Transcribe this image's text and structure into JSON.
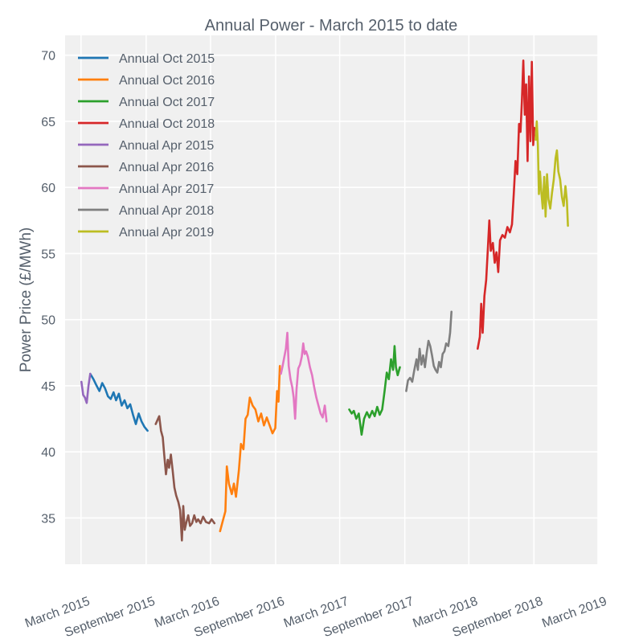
{
  "chart_data": {
    "type": "line",
    "title": "Annual Power - March 2015 to date",
    "xlabel": "",
    "ylabel": "Power Price (£/MWh)",
    "ylim": [
      31.5,
      71.5
    ],
    "xlim": [
      "2015-01-15",
      "2019-03-01"
    ],
    "grid": true,
    "legend_position": "top-left",
    "x_ticks": [
      {
        "label": "March 2015",
        "date": "2015-03-01"
      },
      {
        "label": "September 2015",
        "date": "2015-09-01"
      },
      {
        "label": "March 2016",
        "date": "2016-03-01"
      },
      {
        "label": "September 2016",
        "date": "2016-09-01"
      },
      {
        "label": "March 2017",
        "date": "2017-03-01"
      },
      {
        "label": "September 2017",
        "date": "2017-09-01"
      },
      {
        "label": "March 2018",
        "date": "2018-03-01"
      },
      {
        "label": "September 2018",
        "date": "2018-09-01"
      },
      {
        "label": "March 2019",
        "date": "2019-03-01"
      }
    ],
    "y_ticks": [
      35,
      40,
      45,
      50,
      55,
      60,
      65,
      70
    ],
    "series": [
      {
        "name": "Annual Oct 2015",
        "color": "#1f77b4",
        "points": [
          [
            "2015-03-27",
            45.9
          ],
          [
            "2015-04-05",
            45.5
          ],
          [
            "2015-04-14",
            45.0
          ],
          [
            "2015-04-22",
            44.6
          ],
          [
            "2015-04-30",
            45.2
          ],
          [
            "2015-05-08",
            44.8
          ],
          [
            "2015-05-16",
            44.2
          ],
          [
            "2015-05-24",
            44.0
          ],
          [
            "2015-06-01",
            44.5
          ],
          [
            "2015-06-08",
            43.9
          ],
          [
            "2015-06-16",
            44.4
          ],
          [
            "2015-06-24",
            43.5
          ],
          [
            "2015-07-02",
            43.9
          ],
          [
            "2015-07-10",
            43.3
          ],
          [
            "2015-07-18",
            43.6
          ],
          [
            "2015-07-26",
            42.8
          ],
          [
            "2015-08-03",
            42.1
          ],
          [
            "2015-08-11",
            42.9
          ],
          [
            "2015-08-19",
            42.3
          ],
          [
            "2015-08-27",
            41.9
          ],
          [
            "2015-09-05",
            41.6
          ]
        ]
      },
      {
        "name": "Annual Oct 2016",
        "color": "#ff7f0e",
        "points": [
          [
            "2016-03-28",
            34.0
          ],
          [
            "2016-04-05",
            34.8
          ],
          [
            "2016-04-12",
            35.5
          ],
          [
            "2016-04-16",
            38.9
          ],
          [
            "2016-04-22",
            37.6
          ],
          [
            "2016-04-30",
            36.8
          ],
          [
            "2016-05-06",
            37.6
          ],
          [
            "2016-05-12",
            36.6
          ],
          [
            "2016-05-20",
            38.6
          ],
          [
            "2016-05-26",
            40.6
          ],
          [
            "2016-06-02",
            40.2
          ],
          [
            "2016-06-08",
            42.5
          ],
          [
            "2016-06-14",
            42.8
          ],
          [
            "2016-06-20",
            44.1
          ],
          [
            "2016-06-28",
            43.5
          ],
          [
            "2016-07-06",
            43.2
          ],
          [
            "2016-07-14",
            42.3
          ],
          [
            "2016-07-22",
            42.9
          ],
          [
            "2016-07-30",
            42.0
          ],
          [
            "2016-08-07",
            42.6
          ],
          [
            "2016-08-15",
            42.0
          ],
          [
            "2016-08-23",
            41.4
          ],
          [
            "2016-08-31",
            41.8
          ],
          [
            "2016-09-05",
            44.6
          ],
          [
            "2016-09-09",
            43.8
          ],
          [
            "2016-09-13",
            46.5
          ]
        ]
      },
      {
        "name": "Annual Oct 2017",
        "color": "#2ca02c",
        "points": [
          [
            "2017-03-28",
            43.2
          ],
          [
            "2017-04-04",
            42.9
          ],
          [
            "2017-04-10",
            43.1
          ],
          [
            "2017-04-17",
            42.5
          ],
          [
            "2017-04-24",
            42.9
          ],
          [
            "2017-05-02",
            41.3
          ],
          [
            "2017-05-09",
            42.5
          ],
          [
            "2017-05-17",
            43.0
          ],
          [
            "2017-05-24",
            42.6
          ],
          [
            "2017-06-01",
            43.1
          ],
          [
            "2017-06-08",
            42.7
          ],
          [
            "2017-06-15",
            43.4
          ],
          [
            "2017-06-22",
            42.8
          ],
          [
            "2017-06-29",
            43.2
          ],
          [
            "2017-07-06",
            44.6
          ],
          [
            "2017-07-12",
            46.0
          ],
          [
            "2017-07-18",
            45.5
          ],
          [
            "2017-07-24",
            47.0
          ],
          [
            "2017-07-30",
            46.2
          ],
          [
            "2017-08-03",
            48.0
          ],
          [
            "2017-08-07",
            46.4
          ],
          [
            "2017-08-12",
            45.8
          ],
          [
            "2017-08-18",
            46.4
          ]
        ]
      },
      {
        "name": "Annual Oct 2018",
        "color": "#d62728",
        "points": [
          [
            "2018-03-26",
            47.8
          ],
          [
            "2018-04-01",
            48.7
          ],
          [
            "2018-04-05",
            51.2
          ],
          [
            "2018-04-09",
            49.0
          ],
          [
            "2018-04-14",
            51.8
          ],
          [
            "2018-04-19",
            53.0
          ],
          [
            "2018-04-24",
            55.5
          ],
          [
            "2018-04-28",
            57.5
          ],
          [
            "2018-05-02",
            55.2
          ],
          [
            "2018-05-08",
            55.8
          ],
          [
            "2018-05-13",
            54.3
          ],
          [
            "2018-05-18",
            55.1
          ],
          [
            "2018-05-23",
            53.6
          ],
          [
            "2018-05-28",
            56.0
          ],
          [
            "2018-06-04",
            56.4
          ],
          [
            "2018-06-11",
            56.2
          ],
          [
            "2018-06-18",
            57.0
          ],
          [
            "2018-06-25",
            56.6
          ],
          [
            "2018-07-01",
            57.2
          ],
          [
            "2018-07-06",
            59.5
          ],
          [
            "2018-07-11",
            62.0
          ],
          [
            "2018-07-16",
            61.0
          ],
          [
            "2018-07-21",
            64.8
          ],
          [
            "2018-07-25",
            64.2
          ],
          [
            "2018-07-29",
            66.5
          ],
          [
            "2018-08-02",
            69.6
          ],
          [
            "2018-08-06",
            65.5
          ],
          [
            "2018-08-10",
            67.8
          ],
          [
            "2018-08-14",
            62.0
          ],
          [
            "2018-08-18",
            68.4
          ],
          [
            "2018-08-22",
            63.5
          ],
          [
            "2018-08-26",
            69.5
          ],
          [
            "2018-08-30",
            63.2
          ],
          [
            "2018-09-02",
            64.5
          ]
        ]
      },
      {
        "name": "Annual Apr 2015",
        "color": "#9467bd",
        "points": [
          [
            "2015-03-02",
            45.3
          ],
          [
            "2015-03-07",
            44.3
          ],
          [
            "2015-03-12",
            44.1
          ],
          [
            "2015-03-17",
            43.7
          ],
          [
            "2015-03-22",
            45.0
          ],
          [
            "2015-03-27",
            45.9
          ]
        ]
      },
      {
        "name": "Annual Apr 2016",
        "color": "#8c564b",
        "points": [
          [
            "2015-09-28",
            42.1
          ],
          [
            "2015-10-03",
            42.4
          ],
          [
            "2015-10-08",
            42.7
          ],
          [
            "2015-10-13",
            41.6
          ],
          [
            "2015-10-18",
            41.1
          ],
          [
            "2015-10-22",
            39.8
          ],
          [
            "2015-10-27",
            38.3
          ],
          [
            "2015-11-01",
            39.4
          ],
          [
            "2015-11-05",
            38.8
          ],
          [
            "2015-11-10",
            39.8
          ],
          [
            "2015-11-15",
            38.6
          ],
          [
            "2015-11-20",
            37.3
          ],
          [
            "2015-11-25",
            36.7
          ],
          [
            "2015-12-01",
            36.2
          ],
          [
            "2015-12-06",
            35.6
          ],
          [
            "2015-12-11",
            33.3
          ],
          [
            "2015-12-15",
            35.9
          ],
          [
            "2015-12-19",
            34.1
          ],
          [
            "2015-12-24",
            34.7
          ],
          [
            "2015-12-29",
            35.2
          ],
          [
            "2016-01-03",
            34.4
          ],
          [
            "2016-01-09",
            34.6
          ],
          [
            "2016-01-15",
            35.2
          ],
          [
            "2016-01-21",
            34.7
          ],
          [
            "2016-01-26",
            34.9
          ],
          [
            "2016-02-02",
            34.6
          ],
          [
            "2016-02-09",
            35.1
          ],
          [
            "2016-02-17",
            34.7
          ],
          [
            "2016-02-26",
            34.6
          ],
          [
            "2016-03-04",
            34.9
          ],
          [
            "2016-03-12",
            34.6
          ]
        ]
      },
      {
        "name": "Annual Apr 2017",
        "color": "#e377c2",
        "points": [
          [
            "2016-09-16",
            45.9
          ],
          [
            "2016-09-20",
            46.4
          ],
          [
            "2016-09-25",
            47.1
          ],
          [
            "2016-09-30",
            47.8
          ],
          [
            "2016-10-04",
            49.0
          ],
          [
            "2016-10-08",
            46.5
          ],
          [
            "2016-10-13",
            45.5
          ],
          [
            "2016-10-18",
            44.9
          ],
          [
            "2016-10-22",
            44.1
          ],
          [
            "2016-10-26",
            42.5
          ],
          [
            "2016-10-30",
            44.7
          ],
          [
            "2016-11-04",
            46.3
          ],
          [
            "2016-11-09",
            46.6
          ],
          [
            "2016-11-14",
            47.2
          ],
          [
            "2016-11-18",
            48.2
          ],
          [
            "2016-11-22",
            47.4
          ],
          [
            "2016-11-26",
            47.6
          ],
          [
            "2016-12-01",
            47.2
          ],
          [
            "2016-12-07",
            46.4
          ],
          [
            "2016-12-13",
            45.8
          ],
          [
            "2016-12-19",
            44.9
          ],
          [
            "2016-12-25",
            44.1
          ],
          [
            "2016-12-31",
            43.5
          ],
          [
            "2017-01-06",
            42.9
          ],
          [
            "2017-01-12",
            42.6
          ],
          [
            "2017-01-18",
            43.5
          ],
          [
            "2017-01-23",
            42.3
          ]
        ]
      },
      {
        "name": "Annual Apr 2018",
        "color": "#7f7f7f",
        "points": [
          [
            "2017-09-05",
            44.6
          ],
          [
            "2017-09-10",
            45.4
          ],
          [
            "2017-09-16",
            45.6
          ],
          [
            "2017-09-22",
            45.3
          ],
          [
            "2017-09-28",
            46.2
          ],
          [
            "2017-10-04",
            47.0
          ],
          [
            "2017-10-08",
            46.2
          ],
          [
            "2017-10-13",
            47.8
          ],
          [
            "2017-10-18",
            46.6
          ],
          [
            "2017-10-23",
            47.3
          ],
          [
            "2017-10-28",
            46.4
          ],
          [
            "2017-11-02",
            47.5
          ],
          [
            "2017-11-07",
            48.4
          ],
          [
            "2017-11-12",
            48.0
          ],
          [
            "2017-11-17",
            47.3
          ],
          [
            "2017-11-22",
            46.5
          ],
          [
            "2017-11-27",
            46.2
          ],
          [
            "2017-12-02",
            46.0
          ],
          [
            "2017-12-07",
            46.8
          ],
          [
            "2017-12-12",
            46.4
          ],
          [
            "2017-12-17",
            47.4
          ],
          [
            "2017-12-22",
            47.6
          ],
          [
            "2017-12-27",
            48.2
          ],
          [
            "2018-01-02",
            48.0
          ],
          [
            "2018-01-07",
            49.0
          ],
          [
            "2018-01-11",
            50.6
          ]
        ]
      },
      {
        "name": "Annual Apr 2019",
        "color": "#bcbd22",
        "points": [
          [
            "2018-09-06",
            63.6
          ],
          [
            "2018-09-09",
            65.0
          ],
          [
            "2018-09-12",
            63.2
          ],
          [
            "2018-09-15",
            59.5
          ],
          [
            "2018-09-18",
            61.2
          ],
          [
            "2018-09-22",
            59.6
          ],
          [
            "2018-09-26",
            58.4
          ],
          [
            "2018-09-30",
            60.8
          ],
          [
            "2018-10-04",
            57.8
          ],
          [
            "2018-10-08",
            61.0
          ],
          [
            "2018-10-12",
            59.1
          ],
          [
            "2018-10-17",
            58.4
          ],
          [
            "2018-10-22",
            59.6
          ],
          [
            "2018-10-27",
            60.6
          ],
          [
            "2018-11-01",
            62.2
          ],
          [
            "2018-11-05",
            62.8
          ],
          [
            "2018-11-09",
            61.2
          ],
          [
            "2018-11-14",
            60.6
          ],
          [
            "2018-11-19",
            59.3
          ],
          [
            "2018-11-24",
            58.6
          ],
          [
            "2018-11-29",
            60.1
          ],
          [
            "2018-12-03",
            59.0
          ],
          [
            "2018-12-06",
            57.1
          ]
        ]
      }
    ]
  }
}
